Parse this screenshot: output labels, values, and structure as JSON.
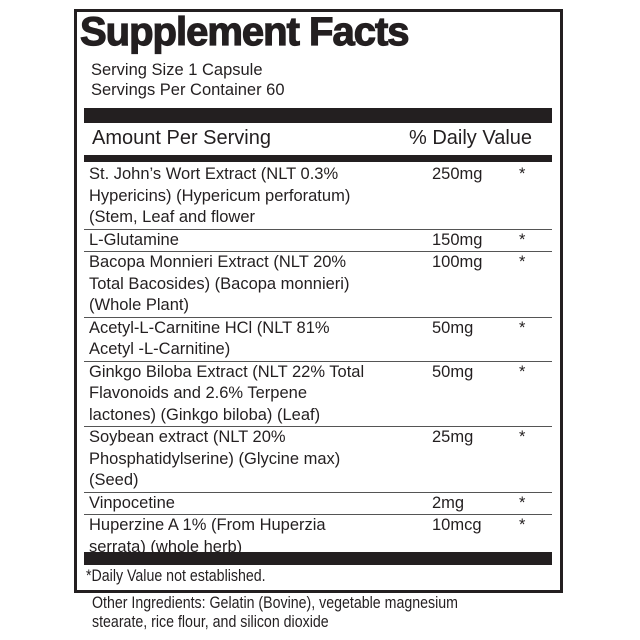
{
  "title": "Supplement Facts",
  "serving_size": "Serving Size 1 Capsule",
  "servings_per_container": "Servings Per Container 60",
  "header": {
    "amount": "Amount Per Serving",
    "dv": "% Daily Value"
  },
  "ingredients": [
    {
      "name_lines": [
        "St. John’s Wort Extract (NLT 0.3%",
        "Hypericins) (Hypericum perforatum)",
        "(Stem, Leaf and flower"
      ],
      "amount": "250mg",
      "dv": "*"
    },
    {
      "name_lines": [
        "L-Glutamine"
      ],
      "amount": "150mg",
      "dv": "*"
    },
    {
      "name_lines": [
        "Bacopa Monnieri Extract (NLT 20%",
        "Total Bacosides) (Bacopa monnieri)",
        "(Whole Plant)"
      ],
      "amount": "100mg",
      "dv": "*"
    },
    {
      "name_lines": [
        "Acetyl-L-Carnitine HCl (NLT 81%",
        "Acetyl -L-Carnitine)"
      ],
      "amount": "50mg",
      "dv": "*"
    },
    {
      "name_lines": [
        "Ginkgo Biloba Extract (NLT 22% Total",
        "Flavonoids and 2.6% Terpene",
        "lactones) (Ginkgo biloba) (Leaf)"
      ],
      "amount": "50mg",
      "dv": "*"
    },
    {
      "name_lines": [
        "Soybean extract (NLT 20%",
        "Phosphatidylserine) (Glycine max)",
        "(Seed)"
      ],
      "amount": "25mg",
      "dv": "*"
    },
    {
      "name_lines": [
        "Vinpocetine"
      ],
      "amount": "2mg",
      "dv": "*"
    },
    {
      "name_lines": [
        "Huperzine A 1% (From Huperzia",
        "serrata) (whole herb)"
      ],
      "amount": "10mcg",
      "dv": "*"
    }
  ],
  "footnote": "*Daily Value not established.",
  "other_ingredients": [
    "Other Ingredients: Gelatin (Bovine), vegetable magnesium",
    "stearate, rice flour, and silicon dioxide"
  ]
}
